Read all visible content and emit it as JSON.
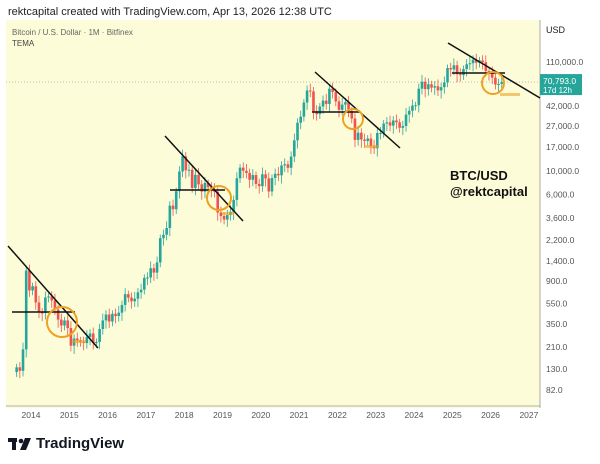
{
  "header": {
    "caption": "rektcapital created with TradingView.com, Apr 13, 2026 12:38 UTC"
  },
  "legend": {
    "symbol": "Bitcoin / U.S. Dollar · 1M · Bitfinex",
    "indicator": "TEMA"
  },
  "annotation": {
    "line1": "BTC/USD",
    "line2": "@rektcapital"
  },
  "price_label": {
    "price": "70,793.0",
    "countdown": "17d 12h",
    "color": "#26a69a"
  },
  "brand": {
    "name": "TradingView"
  },
  "colors": {
    "up": "#26a69a",
    "down": "#ef5350",
    "background": "#fdfcd8",
    "highlight": "#f0a020"
  },
  "chart_data": {
    "type": "candlestick",
    "title": "Bitcoin / U.S. Dollar · 1M · Bitfinex",
    "y_scale": "log",
    "ylabel": "USD",
    "y_ticks": [
      "110,000.0",
      "42,000.0",
      "27,000.0",
      "17,000.0",
      "10,000.0",
      "6,000.0",
      "3,600.0",
      "2,200.0",
      "1,400.0",
      "900.0",
      "550.0",
      "350.0",
      "210.0",
      "130.0",
      "82.0"
    ],
    "y_tick_values": [
      110000,
      42000,
      27000,
      17000,
      10000,
      6000,
      3600,
      2200,
      1400,
      900,
      550,
      350,
      210,
      130,
      82
    ],
    "x_ticks": [
      "2014",
      "2015",
      "2016",
      "2017",
      "2018",
      "2019",
      "2020",
      "2021",
      "2022",
      "2023",
      "2024",
      "2025",
      "2026",
      "2027"
    ],
    "start_month": "2013-08",
    "monthly_close": [
      135,
      125,
      200,
      1130,
      730,
      800,
      560,
      450,
      445,
      625,
      640,
      585,
      480,
      385,
      338,
      378,
      320,
      217,
      254,
      244,
      236,
      230,
      263,
      284,
      230,
      236,
      313,
      378,
      430,
      369,
      437,
      416,
      448,
      531,
      673,
      624,
      575,
      609,
      700,
      742,
      963,
      970,
      1190,
      1080,
      1350,
      2300,
      2480,
      2875,
      4700,
      4340,
      6450,
      9950,
      13850,
      10220,
      10330,
      6930,
      9240,
      7500,
      6390,
      7730,
      7030,
      6630,
      6370,
      4040,
      3740,
      3460,
      3820,
      4100,
      5330,
      8570,
      10820,
      10090,
      9630,
      8290,
      9200,
      7560,
      7200,
      9350,
      8540,
      6410,
      8630,
      9450,
      9140,
      11350,
      11650,
      10780,
      13800,
      19700,
      28990,
      33100,
      45200,
      58800,
      57700,
      37300,
      35040,
      41460,
      47100,
      43790,
      61300,
      57000,
      46300,
      38480,
      43190,
      45540,
      37700,
      31800,
      19900,
      23300,
      20050,
      19420,
      20490,
      17170,
      16540,
      23130,
      23150,
      28480,
      29250,
      27220,
      30480,
      29230,
      25940,
      26970,
      34660,
      37720,
      42280,
      42580,
      61200,
      71300,
      60650,
      67500,
      62700,
      64600,
      59000,
      63300,
      70200,
      96400,
      93400,
      102400,
      84300,
      82500,
      94200,
      104600,
      107100,
      115700,
      108200,
      114000,
      109500,
      90400,
      87500,
      78000,
      67000,
      68000,
      70793
    ],
    "grid": false,
    "legend": "top-left"
  }
}
